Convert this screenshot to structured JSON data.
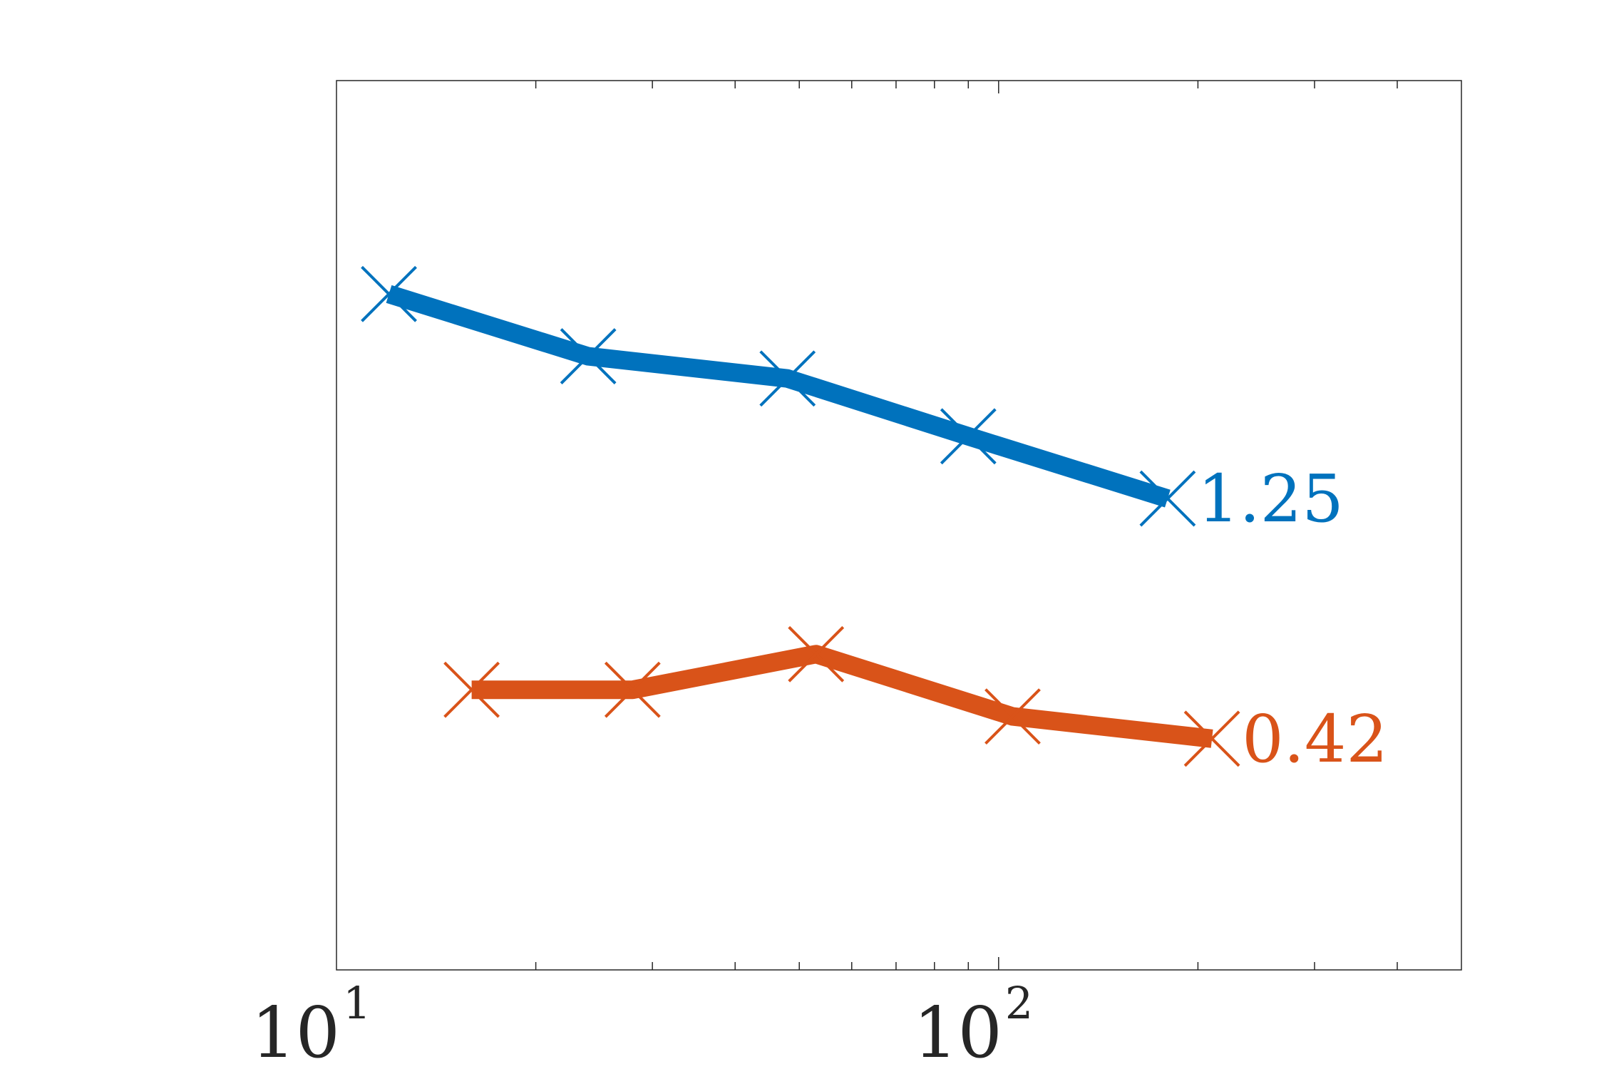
{
  "chart_data": {
    "type": "line",
    "title": "",
    "xlabel": "",
    "ylabel": "",
    "xscale": "log",
    "xlim": [
      10,
      500
    ],
    "ylim": [
      0,
      1
    ],
    "grid": false,
    "x_ticks": [
      {
        "value": 10,
        "base": "10",
        "exp": "1"
      },
      {
        "value": 100,
        "base": "10",
        "exp": "2"
      }
    ],
    "series": [
      {
        "color": "#0072BD",
        "marker": "x",
        "x": [
          12,
          24,
          48,
          90,
          180
        ],
        "y": [
          0.76,
          0.69,
          0.665,
          0.6,
          0.53
        ],
        "end_label": "1.25"
      },
      {
        "color": "#D95319",
        "marker": "x",
        "x": [
          16,
          28,
          53,
          105,
          210
        ],
        "y": [
          0.315,
          0.315,
          0.355,
          0.285,
          0.26
        ],
        "end_label": "0.42"
      }
    ]
  }
}
